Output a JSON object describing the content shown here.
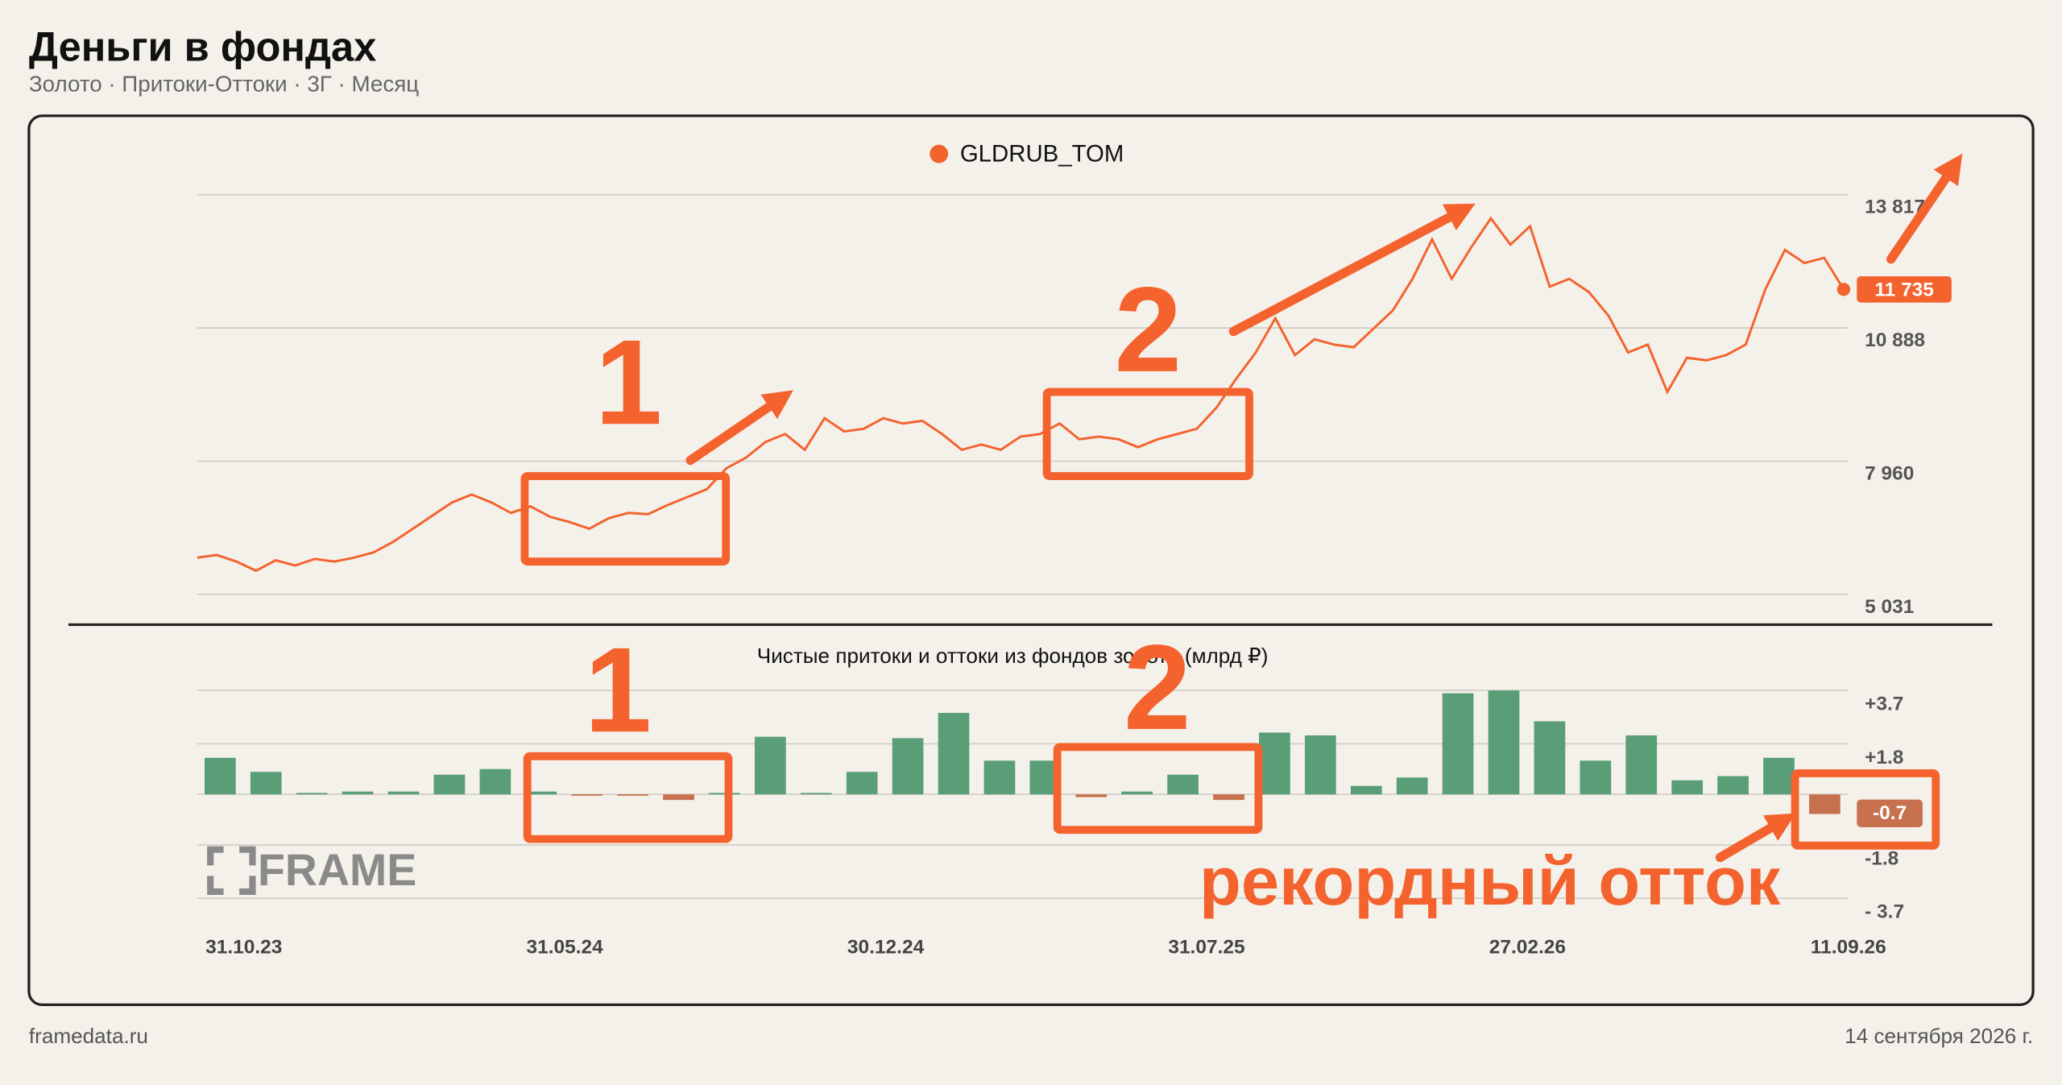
{
  "header": {
    "title": "Деньги в фондах",
    "subtitle": "Золото · Притоки-Оттоки · 3Г · Месяц"
  },
  "chart_data": [
    {
      "type": "line",
      "legend": "top",
      "series": [
        {
          "name": "GLDRUB_TOM",
          "color": "#f4622e",
          "end_label": "11 735",
          "values": [
            5840,
            5898,
            5754,
            5551,
            5782,
            5667,
            5811,
            5754,
            5840,
            5956,
            6187,
            6476,
            6765,
            7054,
            7227,
            7054,
            6823,
            6967,
            6736,
            6621,
            6476,
            6707,
            6823,
            6794,
            6996,
            7170,
            7343,
            7805,
            8037,
            8383,
            8557,
            8210,
            8904,
            8615,
            8672,
            8904,
            8788,
            8846,
            8557,
            8210,
            8326,
            8210,
            8499,
            8557,
            8788,
            8441,
            8499,
            8441,
            8268,
            8441,
            8557,
            8672,
            9135,
            9771,
            10349,
            11100,
            10291,
            10638,
            10522,
            10464,
            10869,
            11273,
            11967,
            12834,
            11967,
            12661,
            13296,
            12718,
            13123,
            11794,
            11967,
            11678,
            11158,
            10349,
            10522,
            9482,
            10233,
            10175,
            10291,
            10522,
            11736,
            12603,
            12314,
            12429,
            11735
          ]
        }
      ],
      "ylim": [
        5031,
        13817
      ],
      "yticks": [
        {
          "value": 5031,
          "label": "5 031"
        },
        {
          "value": 7960,
          "label": "7 960"
        },
        {
          "value": 10888,
          "label": "10  888"
        },
        {
          "value": 13817,
          "label": "13 817"
        }
      ],
      "grid": true
    },
    {
      "type": "bar",
      "title": "Чистые притоки и оттоки из фондов золота (млрд ₽)",
      "categories": [
        "31.10.23",
        null,
        null,
        null,
        null,
        null,
        null,
        "31.05.24",
        null,
        null,
        null,
        null,
        null,
        null,
        "30.12.24",
        null,
        null,
        null,
        null,
        null,
        null,
        "31.07.25",
        null,
        null,
        null,
        null,
        null,
        null,
        "27.02.26",
        null,
        null,
        null,
        null,
        null,
        null,
        "11.09.26"
      ],
      "values": [
        1.3,
        0.8,
        0.05,
        0.1,
        0.1,
        0.7,
        0.9,
        0.1,
        -0.05,
        -0.05,
        -0.2,
        0.05,
        2.05,
        0.05,
        0.8,
        2.0,
        2.9,
        1.2,
        1.2,
        -0.1,
        0.1,
        0.7,
        -0.2,
        2.2,
        2.1,
        0.3,
        0.6,
        3.6,
        3.7,
        2.6,
        1.2,
        2.1,
        0.5,
        0.65,
        1.3,
        -0.7
      ],
      "positive_color": "#5a9e78",
      "negative_color": "#c8714f",
      "ylim": [
        -3.7,
        3.7
      ],
      "yticks": [
        {
          "value": 3.7,
          "label": "+3.7"
        },
        {
          "value": 1.8,
          "label": "+1.8"
        },
        -1.8,
        {
          "value": -3.7,
          "label": "- 3.7"
        }
      ],
      "grid": true
    }
  ],
  "annotations": {
    "first": "1",
    "second": "2",
    "note": "рекордный отток"
  },
  "logo": "FRAME",
  "footer": {
    "source": "framedata.ru",
    "date": "14 сентября 2026 г."
  }
}
